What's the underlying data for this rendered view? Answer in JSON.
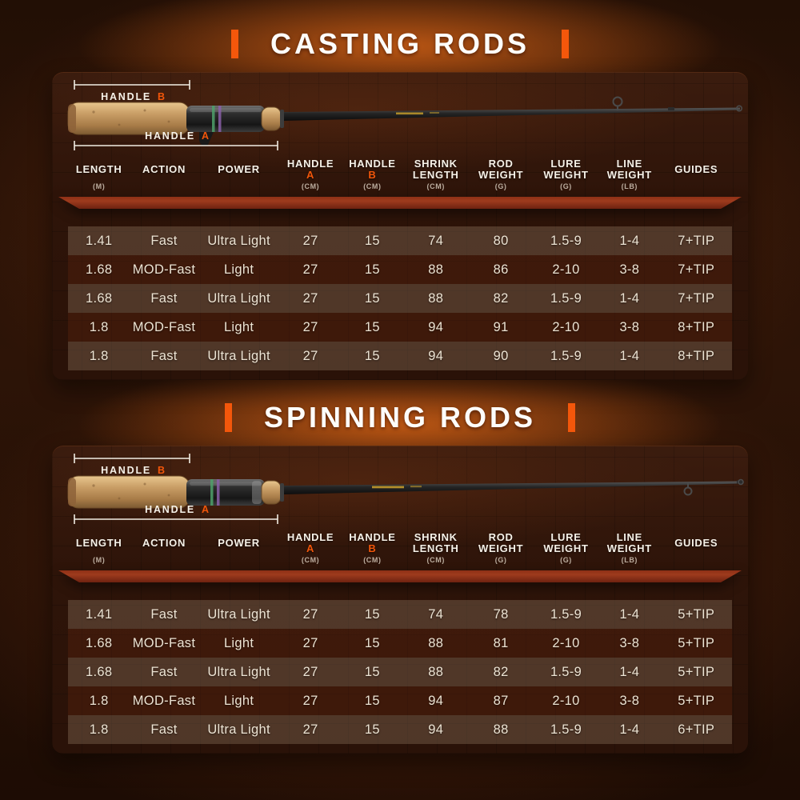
{
  "theme": {
    "accent_orange": "#f2560a",
    "title_text": "#ffffff",
    "table_text": "#ece3d3",
    "panel_background": "#321609",
    "ribbon_red": "#8e3016",
    "cork_tan": "#c99e66"
  },
  "sections": [
    {
      "title": "CASTING RODS",
      "rod_type": "casting",
      "diagram": {
        "handle_b_label": "HANDLE",
        "handle_b_letter": "B",
        "handle_a_label": "HANDLE",
        "handle_a_letter": "A"
      },
      "table": {
        "columns": [
          {
            "line1": "LENGTH",
            "line2": "",
            "accent": "",
            "unit": "(M)"
          },
          {
            "line1": "ACTION",
            "line2": "",
            "accent": "",
            "unit": ""
          },
          {
            "line1": "POWER",
            "line2": "",
            "accent": "",
            "unit": ""
          },
          {
            "line1": "HANDLE",
            "line2": "",
            "accent": "A",
            "unit": "(CM)"
          },
          {
            "line1": "HANDLE",
            "line2": "",
            "accent": "B",
            "unit": "(CM)"
          },
          {
            "line1": "SHRINK",
            "line2": "LENGTH",
            "accent": "",
            "unit": "(CM)"
          },
          {
            "line1": "ROD",
            "line2": "WEIGHT",
            "accent": "",
            "unit": "(G)"
          },
          {
            "line1": "LURE",
            "line2": "WEIGHT",
            "accent": "",
            "unit": "(G)"
          },
          {
            "line1": "LINE",
            "line2": "WEIGHT",
            "accent": "",
            "unit": "(LB)"
          },
          {
            "line1": "GUIDES",
            "line2": "",
            "accent": "",
            "unit": ""
          }
        ],
        "rows": [
          [
            "1.41",
            "Fast",
            "Ultra Light",
            "27",
            "15",
            "74",
            "80",
            "1.5-9",
            "1-4",
            "7+TIP"
          ],
          [
            "1.68",
            "MOD-Fast",
            "Light",
            "27",
            "15",
            "88",
            "86",
            "2-10",
            "3-8",
            "7+TIP"
          ],
          [
            "1.68",
            "Fast",
            "Ultra Light",
            "27",
            "15",
            "88",
            "82",
            "1.5-9",
            "1-4",
            "7+TIP"
          ],
          [
            "1.8",
            "MOD-Fast",
            "Light",
            "27",
            "15",
            "94",
            "91",
            "2-10",
            "3-8",
            "8+TIP"
          ],
          [
            "1.8",
            "Fast",
            "Ultra Light",
            "27",
            "15",
            "94",
            "90",
            "1.5-9",
            "1-4",
            "8+TIP"
          ]
        ]
      }
    },
    {
      "title": "SPINNING RODS",
      "rod_type": "spinning",
      "diagram": {
        "handle_b_label": "HANDLE",
        "handle_b_letter": "B",
        "handle_a_label": "HANDLE",
        "handle_a_letter": "A"
      },
      "table": {
        "columns": [
          {
            "line1": "LENGTH",
            "line2": "",
            "accent": "",
            "unit": "(M)"
          },
          {
            "line1": "ACTION",
            "line2": "",
            "accent": "",
            "unit": ""
          },
          {
            "line1": "POWER",
            "line2": "",
            "accent": "",
            "unit": ""
          },
          {
            "line1": "HANDLE",
            "line2": "",
            "accent": "A",
            "unit": "(CM)"
          },
          {
            "line1": "HANDLE",
            "line2": "",
            "accent": "B",
            "unit": "(CM)"
          },
          {
            "line1": "SHRINK",
            "line2": "LENGTH",
            "accent": "",
            "unit": "(CM)"
          },
          {
            "line1": "ROD",
            "line2": "WEIGHT",
            "accent": "",
            "unit": "(G)"
          },
          {
            "line1": "LURE",
            "line2": "WEIGHT",
            "accent": "",
            "unit": "(G)"
          },
          {
            "line1": "LINE",
            "line2": "WEIGHT",
            "accent": "",
            "unit": "(LB)"
          },
          {
            "line1": "GUIDES",
            "line2": "",
            "accent": "",
            "unit": ""
          }
        ],
        "rows": [
          [
            "1.41",
            "Fast",
            "Ultra Light",
            "27",
            "15",
            "74",
            "78",
            "1.5-9",
            "1-4",
            "5+TIP"
          ],
          [
            "1.68",
            "MOD-Fast",
            "Light",
            "27",
            "15",
            "88",
            "81",
            "2-10",
            "3-8",
            "5+TIP"
          ],
          [
            "1.68",
            "Fast",
            "Ultra Light",
            "27",
            "15",
            "88",
            "82",
            "1.5-9",
            "1-4",
            "5+TIP"
          ],
          [
            "1.8",
            "MOD-Fast",
            "Light",
            "27",
            "15",
            "94",
            "87",
            "2-10",
            "3-8",
            "5+TIP"
          ],
          [
            "1.8",
            "Fast",
            "Ultra Light",
            "27",
            "15",
            "94",
            "88",
            "1.5-9",
            "1-4",
            "6+TIP"
          ]
        ]
      }
    }
  ]
}
